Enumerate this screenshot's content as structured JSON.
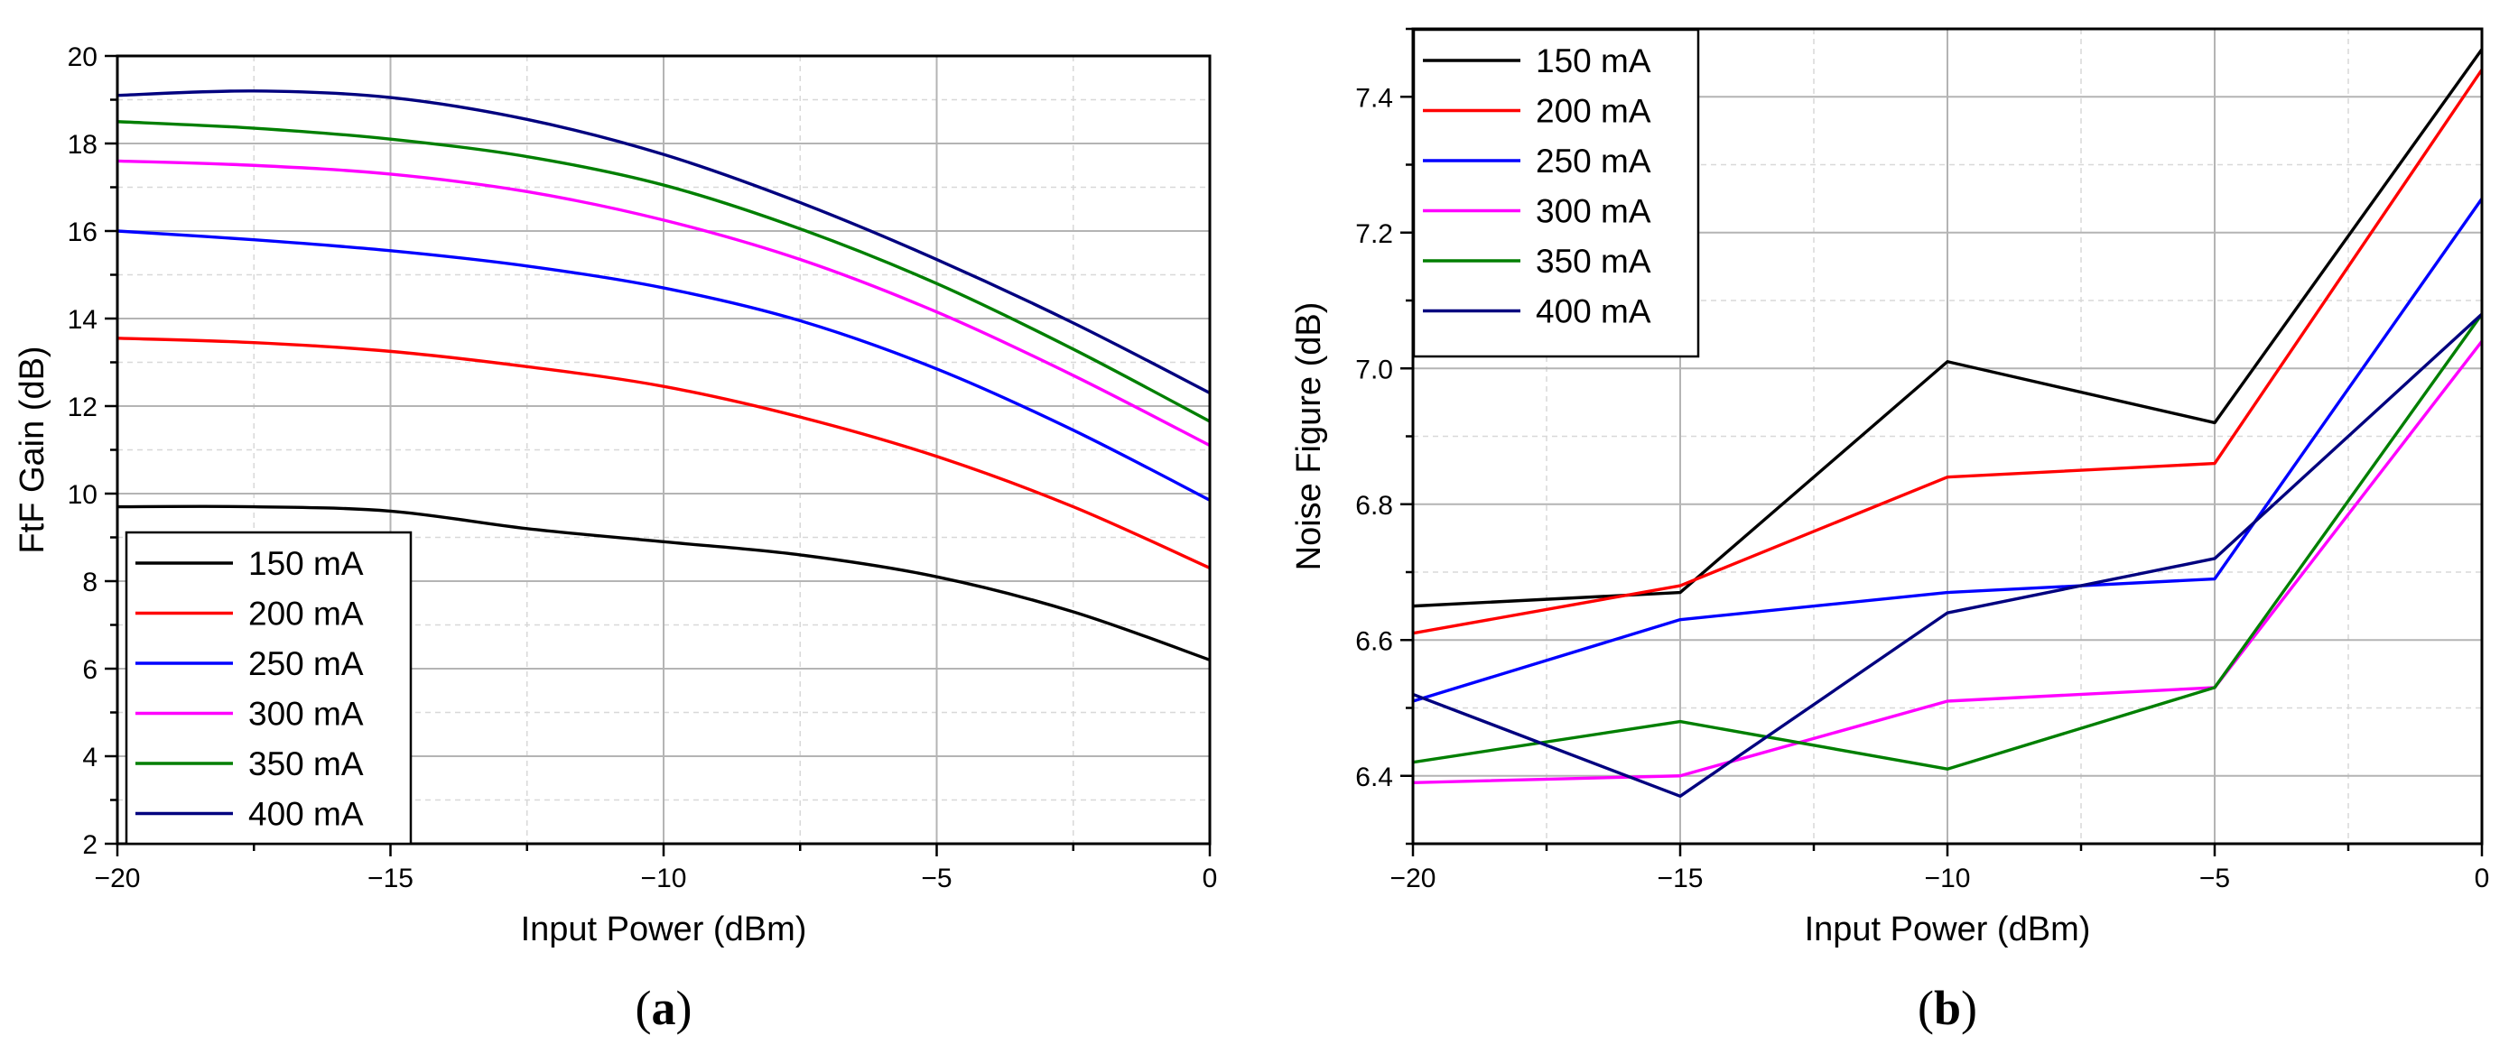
{
  "colors": {
    "150 mA": "#000000",
    "200 mA": "#ff0000",
    "250 mA": "#0000ff",
    "300 mA": "#ff00ff",
    "350 mA": "#007f00",
    "400 mA": "#00007f"
  },
  "chart_data": [
    {
      "type": "line",
      "panel_label": "a",
      "title": "",
      "xlabel": "Input Power (dBm)",
      "ylabel": "FtF Gain (dB)",
      "xlim": [
        -20,
        0
      ],
      "ylim": [
        2,
        20
      ],
      "xticks": [
        -20,
        -15,
        -10,
        -5,
        0
      ],
      "xtick_labels": [
        "−20",
        "−15",
        "−10",
        "−5",
        "0"
      ],
      "yticks": [
        2,
        4,
        6,
        8,
        10,
        12,
        14,
        16,
        18,
        20
      ],
      "ytick_labels": [
        "2",
        "4",
        "6",
        "8",
        "10",
        "12",
        "14",
        "16",
        "18",
        "20"
      ],
      "grid": true,
      "legend_position": "bottom-left",
      "x": [
        -20,
        -17.5,
        -15,
        -12.5,
        -10,
        -7.5,
        -5,
        -2.5,
        0
      ],
      "series": [
        {
          "name": "150 mA",
          "values": [
            9.7,
            9.7,
            9.6,
            9.2,
            8.9,
            8.6,
            8.1,
            7.3,
            6.2
          ]
        },
        {
          "name": "200 mA",
          "values": [
            13.55,
            13.45,
            13.25,
            12.9,
            12.45,
            11.75,
            10.85,
            9.7,
            8.3
          ]
        },
        {
          "name": "250 mA",
          "values": [
            16.0,
            15.8,
            15.55,
            15.2,
            14.7,
            13.95,
            12.85,
            11.45,
            9.85
          ]
        },
        {
          "name": "300 mA",
          "values": [
            17.6,
            17.5,
            17.3,
            16.9,
            16.25,
            15.35,
            14.15,
            12.7,
            11.1
          ]
        },
        {
          "name": "350 mA",
          "values": [
            18.5,
            18.35,
            18.1,
            17.7,
            17.05,
            16.05,
            14.8,
            13.3,
            11.65
          ]
        },
        {
          "name": "400 mA",
          "values": [
            19.1,
            19.2,
            19.05,
            18.55,
            17.75,
            16.65,
            15.35,
            13.9,
            12.3
          ]
        }
      ]
    },
    {
      "type": "line",
      "panel_label": "b",
      "title": "",
      "xlabel": "Input Power (dBm)",
      "ylabel": "Noise Figure (dB)",
      "xlim": [
        -20,
        0
      ],
      "ylim": [
        6.3,
        7.5
      ],
      "xticks": [
        -20,
        -15,
        -10,
        -5,
        0
      ],
      "xtick_labels": [
        "−20",
        "−15",
        "−10",
        "−5",
        "0"
      ],
      "yticks": [
        6.4,
        6.6,
        6.8,
        7.0,
        7.2,
        7.4
      ],
      "ytick_labels": [
        "6.4",
        "6.6",
        "6.8",
        "7.0",
        "7.2",
        "7.4"
      ],
      "grid": true,
      "legend_position": "top-left",
      "x": [
        -20,
        -15,
        -10,
        -5,
        0
      ],
      "series": [
        {
          "name": "150 mA",
          "values": [
            6.65,
            6.67,
            7.01,
            6.92,
            7.47
          ]
        },
        {
          "name": "200 mA",
          "values": [
            6.61,
            6.68,
            6.84,
            6.86,
            7.44
          ]
        },
        {
          "name": "250 mA",
          "values": [
            6.51,
            6.63,
            6.67,
            6.69,
            7.25
          ]
        },
        {
          "name": "300 mA",
          "values": [
            6.39,
            6.4,
            6.51,
            6.53,
            7.04
          ]
        },
        {
          "name": "350 mA",
          "values": [
            6.42,
            6.48,
            6.41,
            6.53,
            7.08
          ]
        },
        {
          "name": "400 mA",
          "values": [
            6.52,
            6.37,
            6.64,
            6.72,
            7.08
          ]
        }
      ]
    }
  ]
}
